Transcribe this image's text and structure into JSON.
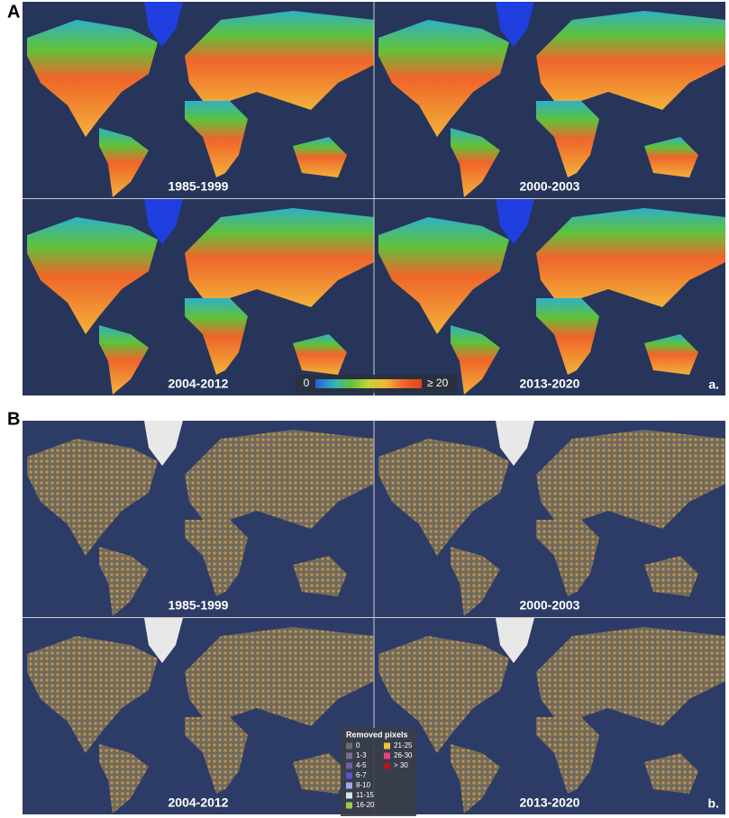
{
  "panel_a": {
    "label": "A",
    "maps": [
      {
        "period": "1985-1999"
      },
      {
        "period": "2000-2003"
      },
      {
        "period": "2004-2012"
      },
      {
        "period": "2013-2020"
      }
    ],
    "colorbar": {
      "min_label": "0",
      "max_label": "≥ 20",
      "colors": [
        "#2a5bd7",
        "#2fb0c8",
        "#5fc23a",
        "#c8d23a",
        "#f2b33a",
        "#f0652a",
        "#e8401f"
      ]
    },
    "corner_label": "a."
  },
  "panel_b": {
    "label": "B",
    "maps": [
      {
        "period": "1985-1999"
      },
      {
        "period": "2000-2003"
      },
      {
        "period": "2004-2012"
      },
      {
        "period": "2013-2020"
      }
    ],
    "legend": {
      "title": "Removed pixels",
      "items": [
        {
          "label": "0",
          "color": "#6b6b6b"
        },
        {
          "label": "1-3",
          "color": "#7a6f8f"
        },
        {
          "label": "4-5",
          "color": "#6a5fa8"
        },
        {
          "label": "6-7",
          "color": "#5a55c8"
        },
        {
          "label": "8-10",
          "color": "#a9a6f0"
        },
        {
          "label": "11-15",
          "color": "#d8e2f2"
        },
        {
          "label": "16-20",
          "color": "#9ccc55"
        },
        {
          "label": "21-25",
          "color": "#f2c33a"
        },
        {
          "label": "26-30",
          "color": "#e8457a"
        },
        {
          "label": "> 30",
          "color": "#b01818"
        }
      ]
    },
    "corner_label": "b."
  }
}
